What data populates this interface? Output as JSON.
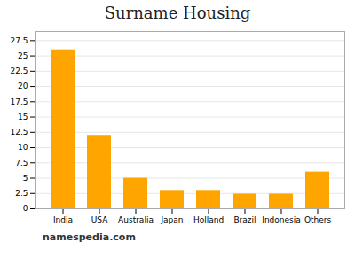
{
  "chart_data": {
    "type": "bar",
    "title": "Surname Housing",
    "categories": [
      "India",
      "USA",
      "Australia",
      "Japan",
      "Holland",
      "Brazil",
      "Indonesia",
      "Others"
    ],
    "values": [
      26,
      12,
      5,
      3,
      3,
      2.4,
      2.4,
      6
    ],
    "color": "#FFA500",
    "ylim": [
      0,
      29
    ],
    "yticks": [
      0,
      2.5,
      5,
      7.5,
      10,
      12.5,
      15,
      17.5,
      20,
      22.5,
      25,
      27.5
    ],
    "grid": true,
    "annotations": [
      "namespedia.com"
    ]
  }
}
